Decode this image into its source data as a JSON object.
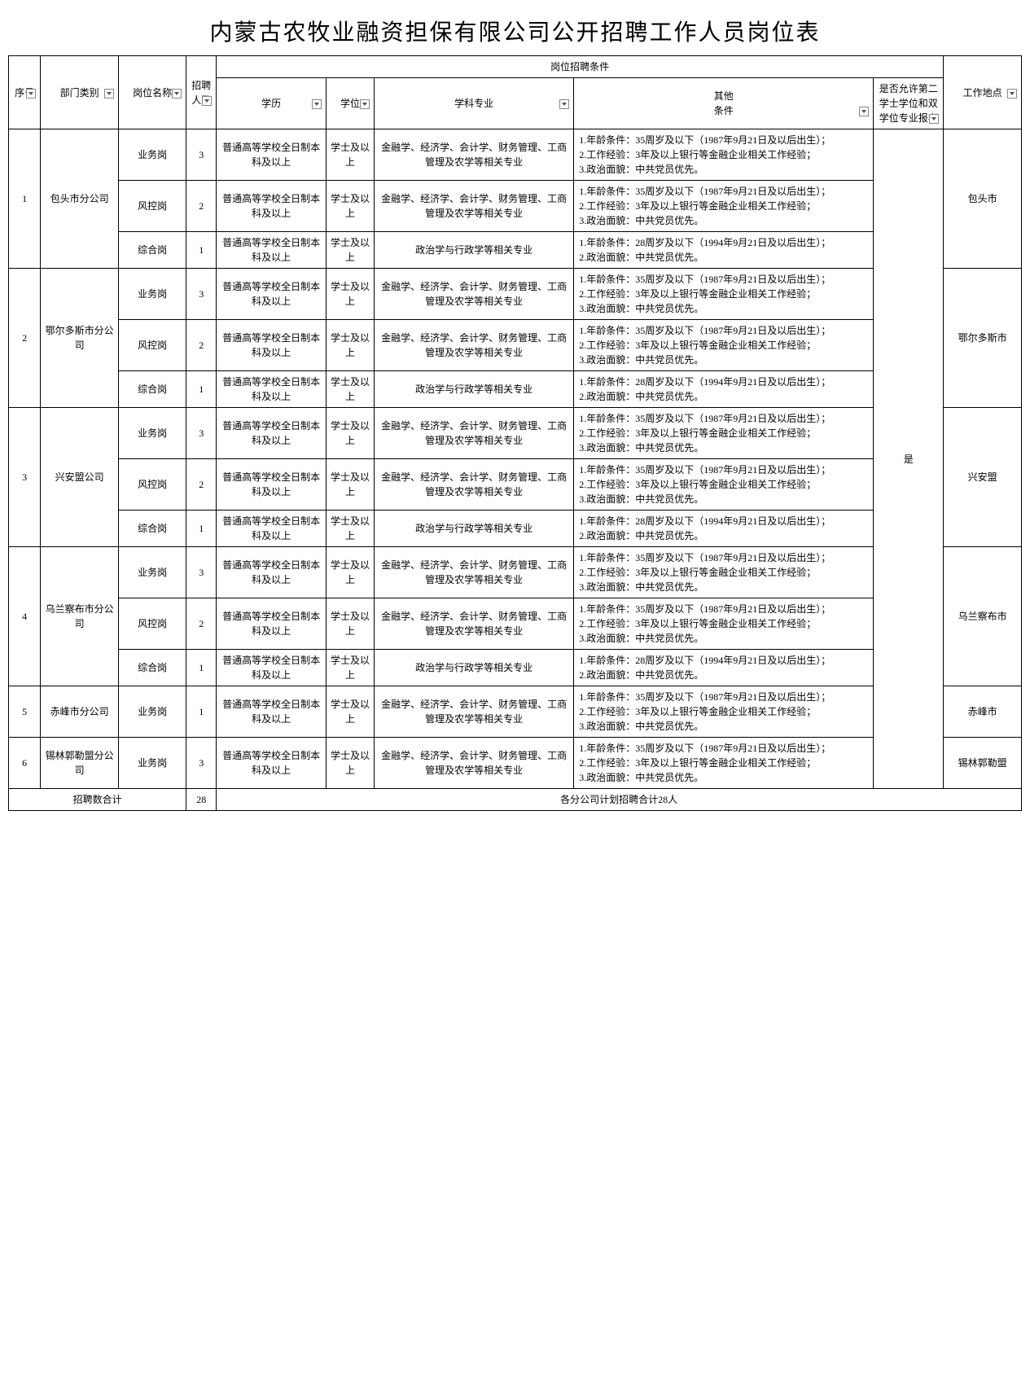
{
  "title": "内蒙古农牧业融资担保有限公司公开招聘工作人员岗位表",
  "headers": {
    "seq": "序号",
    "dept": "部门类别",
    "pos": "岗位名称",
    "num": "招聘人数",
    "cond_group": "岗位招聘条件",
    "edu": "学历",
    "deg": "学位",
    "major": "学科专业",
    "other": "其他\n条件",
    "allow": "是否允许第二学士学位和双学位专业报考",
    "loc": "工作地点"
  },
  "edu_default": "普通高等学校全日制本科及以上",
  "deg_default": "学士及以上",
  "major_fin": "金融学、经济学、会计学、财务管理、工商管理及农学等相关专业",
  "major_pol": "政治学与行政学等相关专业",
  "other35": "1.年龄条件：35周岁及以下（1987年9月21日及以后出生）；\n2.工作经验：3年及以上银行等金融企业相关工作经验；\n3.政治面貌：中共党员优先。",
  "other28": "1.年龄条件：28周岁及以下（1994年9月21日及以后出生）；\n2.政治面貌：中共党员优先。",
  "allow_val": "是",
  "groups": [
    {
      "seq": "1",
      "dept": "包头市分公司",
      "loc": "包头市",
      "rows": [
        {
          "pos": "业务岗",
          "num": "3",
          "major": "fin",
          "other": "35"
        },
        {
          "pos": "风控岗",
          "num": "2",
          "major": "fin",
          "other": "35"
        },
        {
          "pos": "综合岗",
          "num": "1",
          "major": "pol",
          "other": "28"
        }
      ]
    },
    {
      "seq": "2",
      "dept": "鄂尔多斯市分公司",
      "loc": "鄂尔多斯市",
      "rows": [
        {
          "pos": "业务岗",
          "num": "3",
          "major": "fin",
          "other": "35"
        },
        {
          "pos": "风控岗",
          "num": "2",
          "major": "fin",
          "other": "35"
        },
        {
          "pos": "综合岗",
          "num": "1",
          "major": "pol",
          "other": "28"
        }
      ]
    },
    {
      "seq": "3",
      "dept": "兴安盟公司",
      "loc": "兴安盟",
      "rows": [
        {
          "pos": "业务岗",
          "num": "3",
          "major": "fin",
          "other": "35"
        },
        {
          "pos": "风控岗",
          "num": "2",
          "major": "fin",
          "other": "35"
        },
        {
          "pos": "综合岗",
          "num": "1",
          "major": "pol",
          "other": "28"
        }
      ]
    },
    {
      "seq": "4",
      "dept": "乌兰察布市分公司",
      "loc": "乌兰察布市",
      "rows": [
        {
          "pos": "业务岗",
          "num": "3",
          "major": "fin",
          "other": "35"
        },
        {
          "pos": "风控岗",
          "num": "2",
          "major": "fin",
          "other": "35"
        },
        {
          "pos": "综合岗",
          "num": "1",
          "major": "pol",
          "other": "28"
        }
      ]
    },
    {
      "seq": "5",
      "dept": "赤峰市分公司",
      "loc": "赤峰市",
      "rows": [
        {
          "pos": "业务岗",
          "num": "1",
          "major": "fin",
          "other": "35"
        }
      ]
    },
    {
      "seq": "6",
      "dept": "锡林郭勒盟分公司",
      "loc": "锡林郭勒盟",
      "rows": [
        {
          "pos": "业务岗",
          "num": "3",
          "major": "fin",
          "other": "35"
        }
      ]
    }
  ],
  "footer": {
    "label": "招聘数合计",
    "total": "28",
    "note": "各分公司计划招聘合计28人"
  }
}
